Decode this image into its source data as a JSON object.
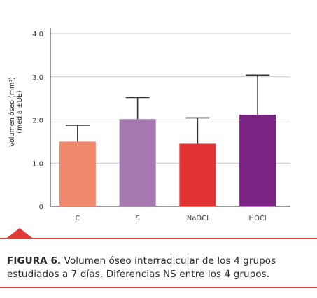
{
  "chart_data": {
    "type": "bar",
    "categories": [
      "C",
      "S",
      "NaOCl",
      "HOCl"
    ],
    "values": [
      1.5,
      2.02,
      1.45,
      2.12
    ],
    "errors": [
      0.38,
      0.5,
      0.6,
      0.92
    ],
    "bar_colors": [
      "#f0896b",
      "#a678b0",
      "#e03232",
      "#7a2383"
    ],
    "ylabel": [
      "Volumen óseo (mm³)",
      "(media ±DE)"
    ],
    "ylim": [
      0,
      4.0
    ],
    "yticks": [
      0,
      1.0,
      2.0,
      3.0,
      4.0
    ],
    "ytick_labels": [
      "0",
      "1.0",
      "2.0",
      "3.0",
      "4.0"
    ],
    "grid": true
  },
  "caption": {
    "label": "FIGURA 6.",
    "text": " Volumen óseo interradicular de los 4 grupos estudiados a 7 días. Diferencias NS entre los 4 grupos."
  },
  "accent_color": "#e23a35"
}
